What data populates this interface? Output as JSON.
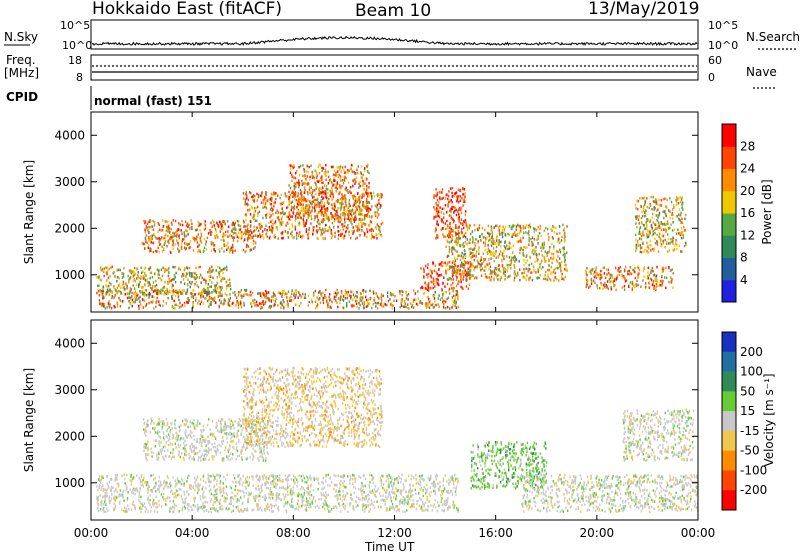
{
  "header": {
    "title": "Hokkaido East (fitACF)",
    "beam": "Beam 10",
    "date": "13/May/2019"
  },
  "status_panel": {
    "nsky_label": "N.Sky",
    "nsky_ticks": [
      "10^5",
      "10^0"
    ],
    "nsearch_label": "N.Search",
    "freq_label_1": "Freq.",
    "freq_label_2": "[MHz]",
    "freq_ticks": [
      "18",
      "8"
    ],
    "nave_label": "Nave",
    "nave_ticks": [
      "60",
      "0"
    ],
    "right_ticks_top": [
      "10^5",
      "10^0"
    ],
    "cpid_label": "CPID",
    "cpid_text": "normal (fast) 151"
  },
  "x_axis": {
    "label": "Time UT",
    "ticks": [
      "00:00",
      "04:00",
      "08:00",
      "12:00",
      "16:00",
      "20:00",
      "00:00"
    ]
  },
  "chart_data": [
    {
      "type": "heatmap",
      "panel": "power",
      "xlabel": "Time UT",
      "ylabel": "Slant Range [km]",
      "yticks": [
        "1000",
        "2000",
        "3000",
        "4000"
      ],
      "ylim": [
        200,
        4500
      ],
      "xlim_hours": [
        0,
        24
      ],
      "colorbar": {
        "label": "Power [dB]",
        "ticks": [
          "4",
          "8",
          "12",
          "16",
          "20",
          "24",
          "28"
        ],
        "colors": [
          "#2020e0",
          "#1f5fa0",
          "#2e8b57",
          "#55aa44",
          "#f0c800",
          "#ff8c00",
          "#ff4500",
          "#ff0000"
        ]
      },
      "echo_regions": [
        {
          "t": [
            0.3,
            14.5
          ],
          "r": [
            300,
            700
          ],
          "level": "mixed"
        },
        {
          "t": [
            0.2,
            5.5
          ],
          "r": [
            600,
            1200
          ],
          "level": "mid"
        },
        {
          "t": [
            2.0,
            6.5
          ],
          "r": [
            1500,
            2200
          ],
          "level": "high"
        },
        {
          "t": [
            6.0,
            11.5
          ],
          "r": [
            1800,
            2800
          ],
          "level": "high"
        },
        {
          "t": [
            7.8,
            11.0
          ],
          "r": [
            2200,
            3400
          ],
          "level": "high"
        },
        {
          "t": [
            13.5,
            14.8
          ],
          "r": [
            1800,
            2900
          ],
          "level": "very_high"
        },
        {
          "t": [
            13.0,
            15.0
          ],
          "r": [
            700,
            1300
          ],
          "level": "very_high"
        },
        {
          "t": [
            14.0,
            18.8
          ],
          "r": [
            900,
            2100
          ],
          "level": "mid"
        },
        {
          "t": [
            19.5,
            23.0
          ],
          "r": [
            700,
            1200
          ],
          "level": "high"
        },
        {
          "t": [
            21.5,
            23.5
          ],
          "r": [
            1500,
            2700
          ],
          "level": "mid"
        }
      ]
    },
    {
      "type": "heatmap",
      "panel": "velocity",
      "xlabel": "Time UT",
      "ylabel": "Slant Range [km]",
      "yticks": [
        "1000",
        "2000",
        "3000",
        "4000"
      ],
      "ylim": [
        200,
        4500
      ],
      "xlim_hours": [
        0,
        24
      ],
      "colorbar": {
        "label": "Velocity [m s⁻¹]",
        "ticks": [
          "200",
          "100",
          "50",
          "15",
          "-15",
          "-50",
          "-100",
          "-200"
        ],
        "colors": [
          "#1a2fbf",
          "#1f6fa0",
          "#2e8b57",
          "#66cc33",
          "#c8c8c8",
          "#f0c850",
          "#ff8c00",
          "#ff4500",
          "#ff0000"
        ]
      },
      "echo_regions": [
        {
          "t": [
            0.2,
            14.5
          ],
          "r": [
            400,
            1200
          ],
          "level": "ground_scatter"
        },
        {
          "t": [
            2.0,
            7.0
          ],
          "r": [
            1500,
            2400
          ],
          "level": "ground_scatter"
        },
        {
          "t": [
            6.0,
            11.5
          ],
          "r": [
            1800,
            3500
          ],
          "level": "slightly_negative"
        },
        {
          "t": [
            15.0,
            18.0
          ],
          "r": [
            900,
            1900
          ],
          "level": "positive"
        },
        {
          "t": [
            17.0,
            24.0
          ],
          "r": [
            400,
            1200
          ],
          "level": "ground_scatter"
        },
        {
          "t": [
            21.0,
            23.8
          ],
          "r": [
            1500,
            2600
          ],
          "level": "ground_scatter"
        }
      ]
    }
  ]
}
